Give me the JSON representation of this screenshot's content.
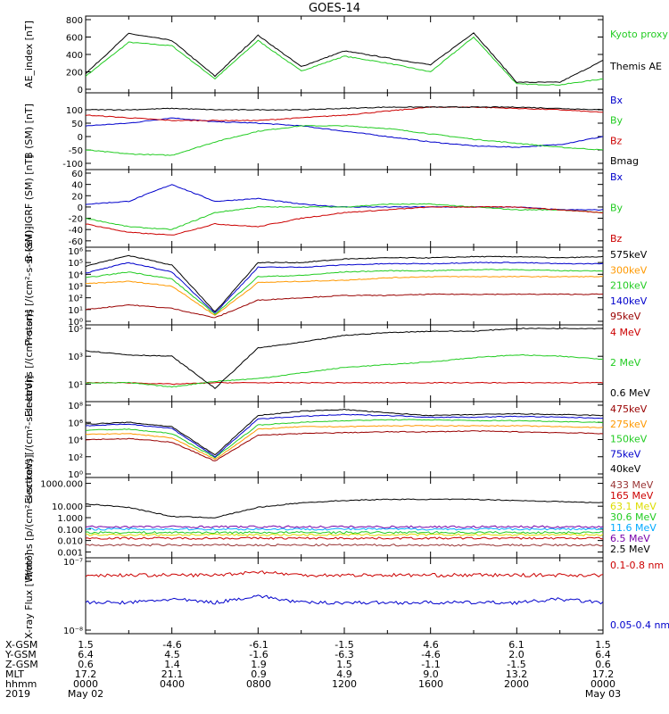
{
  "title": "GOES-14",
  "footer": {
    "rows": [
      {
        "name": "X-GSM",
        "values": [
          "1.5",
          "-4.6",
          "-6.1",
          "-1.5",
          "4.6",
          "6.1",
          "1.5"
        ]
      },
      {
        "name": "Y-GSM",
        "values": [
          "6.4",
          "4.5",
          "-1.6",
          "-6.3",
          "-4.6",
          "2.0",
          "6.4"
        ]
      },
      {
        "name": "Z-GSM",
        "values": [
          "0.6",
          "1.4",
          "1.9",
          "1.5",
          "-1.1",
          "-1.5",
          "0.6"
        ]
      },
      {
        "name": "MLT",
        "values": [
          "17.2",
          "21.1",
          "0.9",
          "4.9",
          "9.0",
          "13.2",
          "17.2"
        ]
      },
      {
        "name": "hhmm",
        "values": [
          "0000",
          "0400",
          "0800",
          "1200",
          "1600",
          "2000",
          "0000"
        ]
      },
      {
        "name": "2019",
        "values": [
          "May 02",
          "",
          "",
          "",
          "",
          "",
          "May 03"
        ]
      }
    ]
  },
  "colors": {
    "black": "#000000",
    "green": "#22cc22",
    "blue": "#0000cc",
    "red": "#cc0000",
    "orange": "#ff9900",
    "darkred": "#990000",
    "yellow": "#dddd00",
    "cyan": "#00aaff",
    "purple": "#7700aa",
    "brown": "#993333"
  },
  "chart_data": [
    {
      "type": "line",
      "ylabel": "AE_index [nT]",
      "ylim": [
        0,
        800
      ],
      "yticks": [
        "0",
        "200",
        "400",
        "600",
        "800"
      ],
      "x": [
        "00:00",
        "02:00",
        "04:00",
        "06:00",
        "08:00",
        "10:00",
        "12:00",
        "14:00",
        "16:00",
        "18:00",
        "20:00",
        "22:00",
        "24:00"
      ],
      "series": [
        {
          "name": "Kyoto proxy AE",
          "color": "green",
          "values": [
            150,
            540,
            500,
            120,
            560,
            210,
            380,
            300,
            200,
            600,
            60,
            50,
            120
          ]
        },
        {
          "name": "Themis AE",
          "color": "black",
          "values": [
            180,
            640,
            560,
            150,
            620,
            260,
            440,
            360,
            280,
            650,
            80,
            80,
            330
          ]
        }
      ],
      "legend_html": [
        "Kyoto proxy AE",
        "Themis AE"
      ]
    },
    {
      "type": "line",
      "ylabel": "B (SM) [nT]",
      "ylim": [
        -110,
        150
      ],
      "yticks": [
        "-100",
        "-50",
        "0",
        "50",
        "100"
      ],
      "x": [
        "00:00",
        "02:00",
        "04:00",
        "06:00",
        "08:00",
        "10:00",
        "12:00",
        "14:00",
        "16:00",
        "18:00",
        "20:00",
        "22:00",
        "24:00"
      ],
      "series": [
        {
          "name": "Bx",
          "color": "blue",
          "values": [
            40,
            50,
            70,
            55,
            50,
            40,
            20,
            0,
            -20,
            -35,
            -40,
            -30,
            0
          ]
        },
        {
          "name": "By",
          "color": "green",
          "values": [
            -50,
            -65,
            -70,
            -20,
            20,
            40,
            40,
            30,
            10,
            -10,
            -25,
            -40,
            -50
          ]
        },
        {
          "name": "Bz",
          "color": "red",
          "values": [
            80,
            70,
            60,
            60,
            60,
            70,
            80,
            95,
            110,
            110,
            105,
            100,
            90
          ]
        },
        {
          "name": "Bmag",
          "color": "black",
          "values": [
            100,
            100,
            105,
            100,
            100,
            100,
            105,
            110,
            110,
            110,
            110,
            105,
            100
          ]
        }
      ]
    },
    {
      "type": "line",
      "ylabel": "B (SM)-IGRF (SM) [nT]",
      "ylim": [
        -65,
        60
      ],
      "yticks": [
        "-60",
        "-40",
        "-20",
        "0",
        "20",
        "40",
        "60"
      ],
      "x": [
        "00:00",
        "02:00",
        "04:00",
        "06:00",
        "08:00",
        "10:00",
        "12:00",
        "14:00",
        "16:00",
        "18:00",
        "20:00",
        "22:00",
        "24:00"
      ],
      "series": [
        {
          "name": "Bx",
          "color": "blue",
          "values": [
            5,
            10,
            40,
            10,
            15,
            5,
            0,
            0,
            0,
            0,
            0,
            -5,
            -5
          ]
        },
        {
          "name": "By",
          "color": "green",
          "values": [
            -20,
            -35,
            -40,
            -10,
            0,
            0,
            0,
            5,
            5,
            0,
            -5,
            -5,
            -10
          ]
        },
        {
          "name": "Bz",
          "color": "red",
          "values": [
            -30,
            -45,
            -50,
            -30,
            -35,
            -20,
            -10,
            -5,
            0,
            0,
            0,
            -5,
            -10
          ]
        }
      ]
    },
    {
      "type": "line",
      "ylabel": "Protons [/(cm²-s-sr-keV)]",
      "ylog": true,
      "ylim_exp": [
        0,
        6
      ],
      "yticks": [
        "10⁰",
        "10¹",
        "10²",
        "10³",
        "10⁴",
        "10⁵",
        "10⁶"
      ],
      "x": [
        "00:00",
        "02:00",
        "04:00",
        "06:00",
        "08:00",
        "10:00",
        "12:00",
        "14:00",
        "16:00",
        "18:00",
        "20:00",
        "22:00",
        "24:00"
      ],
      "series": [
        {
          "name": "575keV",
          "color": "black",
          "log_values": [
            4.7,
            5.6,
            4.8,
            0.8,
            5.0,
            5.0,
            5.3,
            5.4,
            5.4,
            5.5,
            5.5,
            5.4,
            5.5
          ]
        },
        {
          "name": "300keV",
          "color": "orange",
          "log_values": [
            3.2,
            3.4,
            3.0,
            0.5,
            3.3,
            3.4,
            3.5,
            3.7,
            3.8,
            3.8,
            3.8,
            3.8,
            3.8
          ]
        },
        {
          "name": "210keV",
          "color": "green",
          "log_values": [
            3.7,
            4.2,
            3.6,
            0.6,
            3.8,
            3.9,
            4.2,
            4.3,
            4.3,
            4.4,
            4.4,
            4.3,
            4.3
          ]
        },
        {
          "name": "140keV",
          "color": "blue",
          "log_values": [
            4.1,
            5.0,
            4.2,
            0.7,
            4.6,
            4.6,
            4.8,
            4.9,
            4.9,
            5.0,
            5.0,
            4.9,
            4.9
          ]
        },
        {
          "name": "95keV",
          "color": "darkred",
          "log_values": [
            1.0,
            1.4,
            1.1,
            0.3,
            1.8,
            2.0,
            2.2,
            2.2,
            2.3,
            2.3,
            2.3,
            2.3,
            2.3
          ]
        }
      ]
    },
    {
      "type": "line",
      "ylabel": "Electrons [/(cm²-s-sr)]",
      "ylog": true,
      "ylim_exp": [
        0,
        5
      ],
      "yticks": [
        "10¹",
        "10³",
        "10⁵"
      ],
      "ytick_exp": [
        1,
        3,
        5
      ],
      "x": [
        "00:00",
        "02:00",
        "04:00",
        "06:00",
        "08:00",
        "10:00",
        "12:00",
        "14:00",
        "16:00",
        "18:00",
        "20:00",
        "22:00",
        "24:00"
      ],
      "series": [
        {
          "name": "4 MeV",
          "color": "red",
          "log_values": [
            1.1,
            1.1,
            1.0,
            1.1,
            1.1,
            1.1,
            1.1,
            1.1,
            1.1,
            1.1,
            1.1,
            1.1,
            1.1
          ]
        },
        {
          "name": "2 MeV",
          "color": "green",
          "log_values": [
            1.1,
            1.1,
            0.8,
            1.2,
            1.4,
            1.8,
            2.2,
            2.4,
            2.6,
            2.9,
            3.1,
            3.0,
            2.8
          ]
        },
        {
          "name": "0.6 MeV",
          "color": "black",
          "log_values": [
            3.4,
            3.1,
            3.0,
            0.7,
            3.6,
            4.0,
            4.5,
            4.7,
            4.8,
            4.8,
            5.0,
            5.0,
            5.0
          ]
        }
      ]
    },
    {
      "type": "line",
      "ylabel": "Electrons [/(cm²-s-sr-keV)]",
      "ylog": true,
      "ylim_exp": [
        0,
        8
      ],
      "yticks": [
        "10⁰",
        "10²",
        "10⁴",
        "10⁶",
        "10⁸"
      ],
      "ytick_exp": [
        0,
        2,
        4,
        6,
        8
      ],
      "x": [
        "00:00",
        "02:00",
        "04:00",
        "06:00",
        "08:00",
        "10:00",
        "12:00",
        "14:00",
        "16:00",
        "18:00",
        "20:00",
        "22:00",
        "24:00"
      ],
      "series": [
        {
          "name": "475keV",
          "color": "darkred",
          "log_values": [
            4.0,
            4.1,
            3.7,
            1.5,
            4.5,
            4.7,
            4.8,
            4.9,
            4.9,
            5.0,
            4.9,
            4.8,
            4.7
          ]
        },
        {
          "name": "275keV",
          "color": "orange",
          "log_values": [
            4.6,
            4.7,
            4.2,
            1.7,
            5.2,
            5.5,
            5.5,
            5.6,
            5.6,
            5.6,
            5.6,
            5.5,
            5.4
          ]
        },
        {
          "name": "150keV",
          "color": "green",
          "log_values": [
            5.1,
            5.2,
            4.7,
            1.9,
            5.7,
            6.0,
            6.2,
            6.3,
            6.3,
            6.2,
            6.2,
            6.1,
            6.0
          ]
        },
        {
          "name": "75keV",
          "color": "blue",
          "log_values": [
            5.6,
            5.8,
            5.3,
            2.0,
            6.4,
            6.7,
            6.9,
            6.8,
            6.6,
            6.6,
            6.7,
            6.6,
            6.5
          ]
        },
        {
          "name": "40keV",
          "color": "black",
          "log_values": [
            5.8,
            6.0,
            5.5,
            2.2,
            6.8,
            7.3,
            7.5,
            7.1,
            6.8,
            6.9,
            7.0,
            6.9,
            6.8
          ]
        }
      ]
    },
    {
      "type": "line",
      "ylabel": "Protons [p/(cm²-s-sr-keV)]",
      "ylog": true,
      "ylim_exp": [
        -3.2,
        3.2
      ],
      "yticks": [
        "0.001",
        "0.010",
        "0.100",
        "1.000",
        "10.000",
        "1000.000"
      ],
      "ytick_exp": [
        -3,
        -2,
        -1,
        0,
        1,
        3
      ],
      "x": [
        "00:00",
        "02:00",
        "04:00",
        "06:00",
        "08:00",
        "10:00",
        "12:00",
        "14:00",
        "16:00",
        "18:00",
        "20:00",
        "22:00",
        "24:00"
      ],
      "series": [
        {
          "name": "433 MeV",
          "color": "brown",
          "log_values": [
            -2.4,
            -2.4,
            -2.4,
            -2.4,
            -2.4,
            -2.4,
            -2.4,
            -2.4,
            -2.4,
            -2.4,
            -2.4,
            -2.4,
            -2.4
          ]
        },
        {
          "name": "165 MeV",
          "color": "red",
          "log_values": [
            -1.8,
            -1.8,
            -1.8,
            -1.8,
            -1.8,
            -1.8,
            -1.8,
            -1.8,
            -1.8,
            -1.8,
            -1.8,
            -1.8,
            -1.8
          ]
        },
        {
          "name": "63.1 MeV",
          "color": "yellow",
          "log_values": [
            -1.5,
            -1.5,
            -1.5,
            -1.5,
            -1.5,
            -1.5,
            -1.5,
            -1.5,
            -1.5,
            -1.5,
            -1.5,
            -1.5,
            -1.5
          ]
        },
        {
          "name": "30.6 MeV",
          "color": "green",
          "log_values": [
            -1.3,
            -1.3,
            -1.3,
            -1.3,
            -1.3,
            -1.3,
            -1.3,
            -1.3,
            -1.3,
            -1.3,
            -1.3,
            -1.3,
            -1.3
          ]
        },
        {
          "name": "11.6 MeV",
          "color": "cyan",
          "log_values": [
            -1.0,
            -1.0,
            -1.0,
            -1.0,
            -1.0,
            -1.0,
            -1.0,
            -1.0,
            -1.0,
            -1.0,
            -1.0,
            -1.0,
            -1.0
          ]
        },
        {
          "name": "6.5 MeV",
          "color": "purple",
          "log_values": [
            -0.8,
            -0.8,
            -0.8,
            -0.8,
            -0.8,
            -0.8,
            -0.8,
            -0.8,
            -0.8,
            -0.8,
            -0.8,
            -0.8,
            -0.8
          ]
        },
        {
          "name": "2.5 MeV",
          "color": "black",
          "log_values": [
            1.2,
            0.9,
            0.1,
            0.0,
            0.9,
            1.3,
            1.5,
            1.6,
            1.6,
            1.6,
            1.5,
            1.4,
            1.3
          ]
        }
      ]
    },
    {
      "type": "line",
      "ylabel": "X-ray Flux [W/m²]",
      "ylog": true,
      "ylim_exp": [
        -8,
        -7
      ],
      "yticks": [
        "10⁻⁸",
        "10⁻⁷"
      ],
      "ytick_exp": [
        -8,
        -7
      ],
      "x": [
        "00:00",
        "02:00",
        "04:00",
        "06:00",
        "08:00",
        "10:00",
        "12:00",
        "14:00",
        "16:00",
        "18:00",
        "20:00",
        "22:00",
        "24:00"
      ],
      "series": [
        {
          "name": "0.1-0.8 nm",
          "color": "red",
          "log_values": [
            -7.2,
            -7.2,
            -7.2,
            -7.2,
            -7.15,
            -7.2,
            -7.2,
            -7.2,
            -7.2,
            -7.2,
            -7.2,
            -7.2,
            -7.2
          ]
        },
        {
          "name": "0.05-0.4 nm",
          "color": "blue",
          "log_values": [
            -7.6,
            -7.6,
            -7.55,
            -7.6,
            -7.5,
            -7.6,
            -7.6,
            -7.6,
            -7.6,
            -7.6,
            -7.6,
            -7.55,
            -7.6
          ]
        }
      ]
    }
  ]
}
